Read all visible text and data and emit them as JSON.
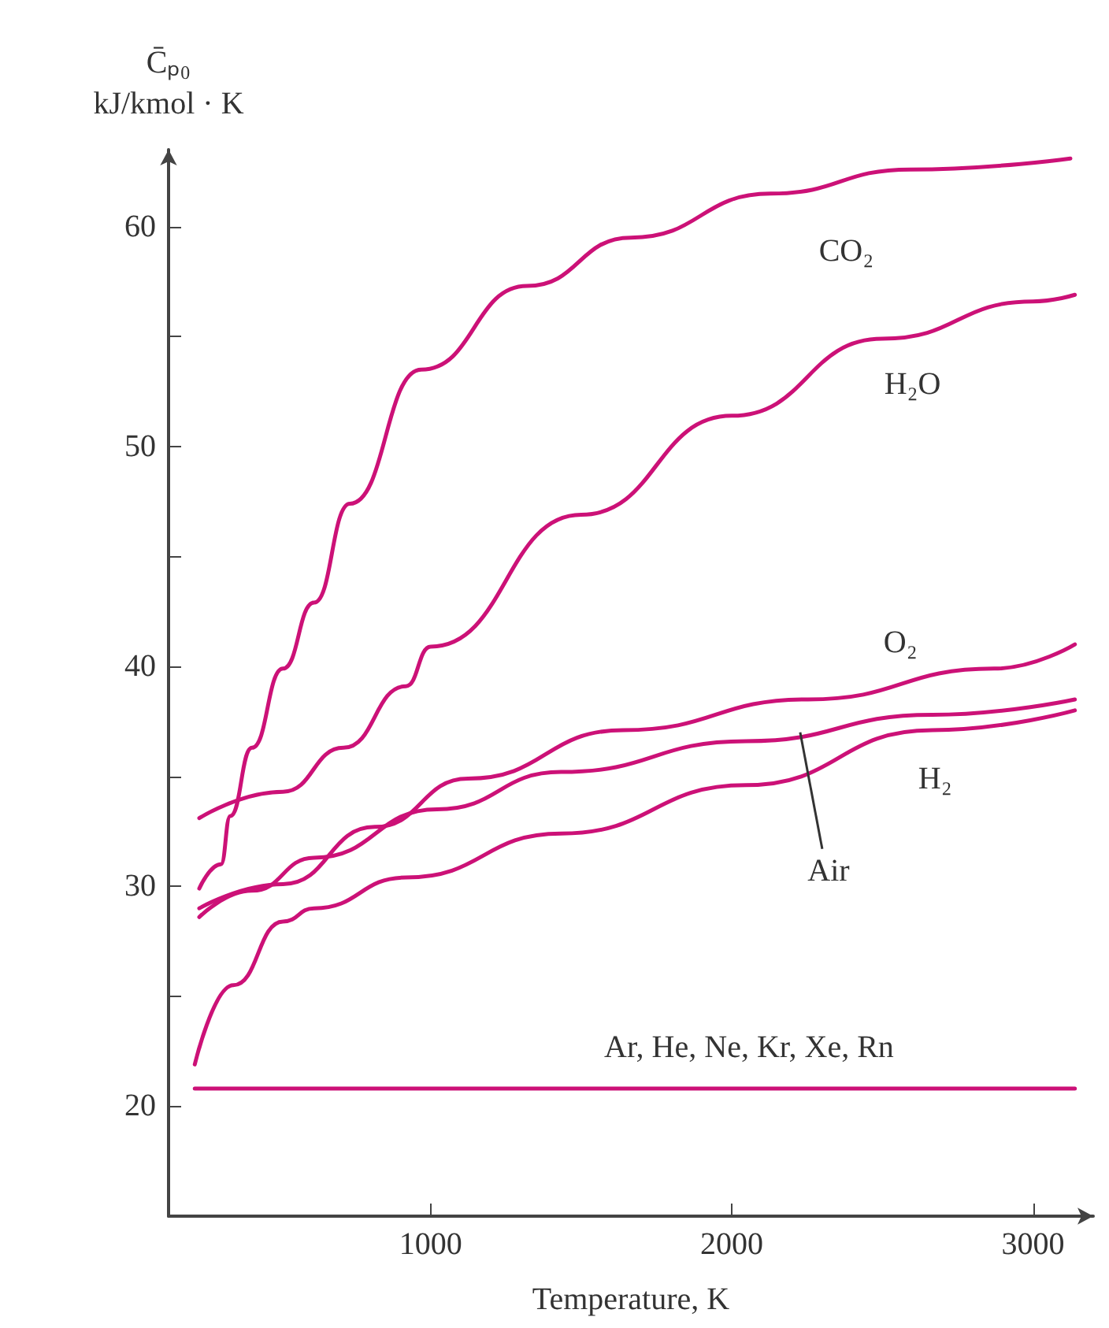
{
  "chart_data": {
    "type": "line",
    "xlabel": "Temperature, K",
    "ylabel": "C̄ₚ₀\nkJ/kmol · K",
    "xlim": [
      130,
      3200
    ],
    "xticks": [
      1000,
      2000,
      3000
    ],
    "ylim": [
      15,
      63.5
    ],
    "yticks": [
      20,
      {
        "value": 25,
        "label": null
      },
      30,
      {
        "value": 35,
        "label": null
      },
      40,
      {
        "value": 45,
        "label": null
      },
      50,
      {
        "value": 55,
        "label": null
      },
      60
    ],
    "grid": false,
    "line_style": "solid",
    "series": [
      {
        "color": "#cc1177",
        "x": [
          232,
          304,
          335,
          407,
          510,
          613,
          732,
          969,
          1320,
          1665,
          2129,
          2593,
          3124
        ],
        "values": [
          29.9,
          31,
          33.2,
          36.3,
          39.9,
          42.9,
          47.4,
          53.5,
          57.3,
          59.5,
          61.5,
          62.6,
          63.1
        ]
      },
      {
        "color": "#cc1177",
        "x": [
          232,
          510,
          711,
          918,
          1000,
          1500,
          2000,
          2500,
          3000,
          3139
        ],
        "values": [
          33.1,
          34.3,
          36.3,
          39.1,
          40.9,
          46.9,
          51.4,
          54.9,
          56.6,
          56.9
        ]
      },
      {
        "color": "#cc1177",
        "x": [
          232,
          510,
          814,
          1124,
          1639,
          2253,
          2871,
          3139
        ],
        "values": [
          29.0,
          30.1,
          32.7,
          34.9,
          37.1,
          38.5,
          39.9,
          41.0
        ]
      },
      {
        "color": "#cc1177",
        "x": [
          232,
          407,
          613,
          1021,
          1433,
          2047,
          2665,
          3139
        ],
        "values": [
          28.6,
          29.8,
          31.3,
          33.5,
          35.2,
          36.6,
          37.8,
          38.5
        ]
      },
      {
        "color": "#cc1177",
        "x": [
          217,
          345,
          510,
          613,
          918,
          1433,
          2047,
          2665,
          3139
        ],
        "values": [
          21.9,
          25.5,
          28.4,
          29.0,
          30.4,
          32.4,
          34.6,
          37.1,
          38.0
        ]
      },
      {
        "color": "#cc1177",
        "x": [
          217,
          3139
        ],
        "values": [
          20.8,
          20.8
        ]
      }
    ],
    "annotations": [
      {
        "text": "CO₂",
        "x": 2380,
        "y": 62.1
      },
      {
        "text": "H₂O",
        "x": 2600,
        "y": 55.2
      },
      {
        "text": "O₂",
        "x": 2560,
        "y": 39.2
      },
      {
        "text": "H₂",
        "x": 2675,
        "y": 37.1
      },
      {
        "text": "Air",
        "x": 2227,
        "y": 37.0
      },
      {
        "text": "Ar, He, Ne, Kr, Xe, Rn",
        "x": 2057,
        "y": 20.8
      }
    ]
  }
}
